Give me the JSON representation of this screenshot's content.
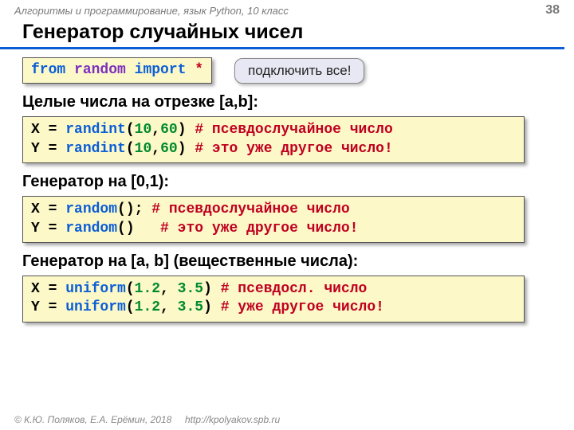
{
  "header": {
    "course": "Алгоритмы и программирование, язык Python, 10 класс",
    "page": "38"
  },
  "title": "Генератор случайных чисел",
  "import_code": {
    "kw_from": "from",
    "module": "random",
    "kw_import": "import",
    "star": "*"
  },
  "callout": "подключить все!",
  "sec1": {
    "heading": "Целые числа на отрезке [a,b]:",
    "l1": {
      "v": "X",
      "eq": " = ",
      "fn": "randint",
      "op": "(",
      "a1": "10",
      "c": ",",
      "a2": "60",
      "cp": ")",
      "sp": " ",
      "cm": "# псевдослучайное число"
    },
    "l2": {
      "v": "Y",
      "eq": " = ",
      "fn": "randint",
      "op": "(",
      "a1": "10",
      "c": ",",
      "a2": "60",
      "cp": ")",
      "sp": " ",
      "cm": "# это уже другое число!"
    }
  },
  "sec2": {
    "heading": "Генератор на [0,1):",
    "l1": {
      "v": "X",
      "eq": " = ",
      "fn": "random",
      "rest": "(); ",
      "cm": "# псевдослучайное число"
    },
    "l2": {
      "v": "Y",
      "eq": " = ",
      "fn": "random",
      "rest": "()   ",
      "cm": "# это уже другое число!"
    }
  },
  "sec3": {
    "heading": "Генератор на [a, b] (вещественные числа):",
    "l1": {
      "v": "X",
      "eq": " = ",
      "fn": "uniform",
      "op": "(",
      "a1": "1.2",
      "c": ", ",
      "a2": "3.5",
      "cp": ")",
      "sp": " ",
      "cm": "# псевдосл. число"
    },
    "l2": {
      "v": "Y",
      "eq": " = ",
      "fn": "uniform",
      "op": "(",
      "a1": "1.2",
      "c": ", ",
      "a2": "3.5",
      "cp": ")",
      "sp": " ",
      "cm": "# уже другое число!"
    }
  },
  "footer": {
    "copyright": "© К.Ю. Поляков, Е.А. Ерёмин, 2018",
    "url": "http://kpolyakov.spb.ru"
  },
  "colors": {
    "accent": "#0b5ed7",
    "code_bg": "#fcf8c8",
    "callout_bg": "#e8e8f4",
    "keyword_purple": "#7b2fbf",
    "keyword_red": "#c00020",
    "number": "#008a2e"
  }
}
